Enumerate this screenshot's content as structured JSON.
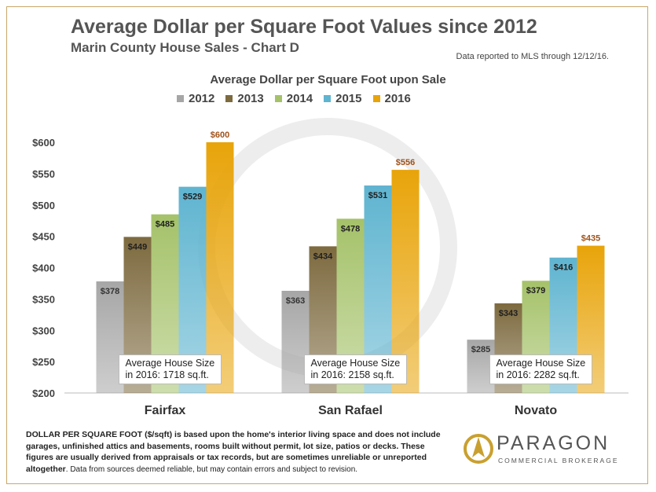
{
  "title": "Average Dollar per Square Foot Values since 2012",
  "subtitle": "Marin County House Sales - Chart D",
  "report_note": "Data reported to MLS through  12/12/16.",
  "chart_data": {
    "type": "bar",
    "title": "Average Dollar per Square Foot upon Sale",
    "categories": [
      "Fairfax",
      "San Rafael",
      "Novato"
    ],
    "series": [
      {
        "name": "2012",
        "values": [
          378,
          363,
          285
        ],
        "labels": [
          "$378",
          "$363",
          "$285"
        ],
        "color": "#a6a6a6"
      },
      {
        "name": "2013",
        "values": [
          449,
          434,
          343
        ],
        "labels": [
          "$449",
          "$434",
          "$343"
        ],
        "color": "#7d6a3f"
      },
      {
        "name": "2014",
        "values": [
          485,
          478,
          379
        ],
        "labels": [
          "$485",
          "$478",
          "$379"
        ],
        "color": "#a5c26a"
      },
      {
        "name": "2015",
        "values": [
          529,
          531,
          416
        ],
        "labels": [
          "$529",
          "$531",
          "$416"
        ],
        "color": "#5fb4d0"
      },
      {
        "name": "2016",
        "values": [
          600,
          556,
          435
        ],
        "labels": [
          "$600",
          "$556",
          "$435"
        ],
        "color": "#e8a40a"
      }
    ],
    "ylim": [
      200,
      600
    ],
    "yticks": [
      "$200",
      "$250",
      "$300",
      "$350",
      "$400",
      "$450",
      "$500",
      "$550",
      "$600"
    ],
    "ytick_values": [
      200,
      250,
      300,
      350,
      400,
      450,
      500,
      550,
      600
    ],
    "legend_position": "top",
    "annotations": [
      {
        "line1": "Average House Size",
        "line2": "in 2016: 1718 sq.ft."
      },
      {
        "line1": "Average House Size",
        "line2": "in 2016: 2158 sq.ft."
      },
      {
        "line1": "Average House Size",
        "line2": "in 2016: 2282 sq.ft."
      }
    ]
  },
  "footnote": {
    "bold_text": "DOLLAR PER SQUARE FOOT ($/sqft) is based upon the home's interior living space and does not include garages, unfinished attics and basements, rooms built without permit, lot size, patios or decks. These figures are usually derived from appraisals or tax records, but are sometimes unreliable or unreported altogether",
    "source_text": ".  Data from sources deemed reliable, but may contain errors  and subject to revision."
  },
  "logo": {
    "name": "PARAGON",
    "tagline": "COMMERCIAL BROKERAGE",
    "color": "#c9a030"
  }
}
